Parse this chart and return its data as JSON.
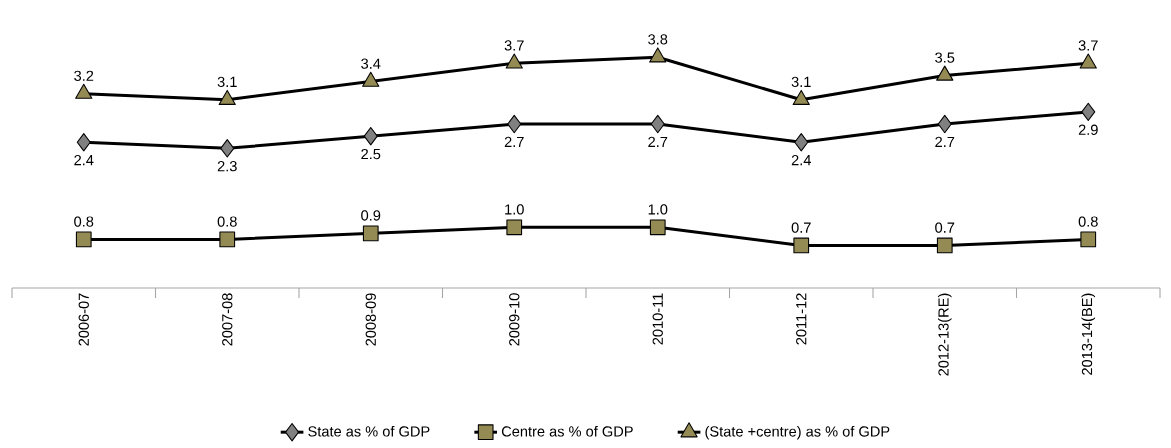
{
  "chart_data": {
    "type": "line",
    "categories": [
      "2006-07",
      "2007-08",
      "2008-09",
      "2009-10",
      "2010-11",
      "2011-12",
      "2012-13(RE)",
      "2013-14(BE)"
    ],
    "series": [
      {
        "name": "State as % of GDP",
        "color": "#000000",
        "colors": [
          "#808080",
          "#808080",
          "#808080",
          "#808080",
          "#808080",
          "#808080",
          "#808080",
          "#808080"
        ],
        "marker": "diamond",
        "values": [
          2.4,
          2.3,
          2.5,
          2.7,
          2.7,
          2.4,
          2.7,
          2.9
        ],
        "value_labels": [
          "2.4",
          "2.3",
          "2.5",
          "2.7",
          "2.7",
          "2.4",
          "2.7",
          "2.9"
        ]
      },
      {
        "name": "Centre as % of GDP",
        "color": "#000000",
        "colors": [
          "#948a54",
          "#948a54",
          "#948a54",
          "#948a54",
          "#948a54",
          "#948a54",
          "#948a54",
          "#948a54"
        ],
        "marker": "square",
        "values": [
          0.8,
          0.8,
          0.9,
          1.0,
          1.0,
          0.7,
          0.7,
          0.8
        ],
        "value_labels": [
          "0.8",
          "0.8",
          "0.9",
          "1.0",
          "1.0",
          "0.7",
          "0.7",
          "0.8"
        ]
      },
      {
        "name": "(State +centre) as % of GDP",
        "color": "#000000",
        "colors": [
          "#948a54",
          "#948a54",
          "#948a54",
          "#948a54",
          "#948a54",
          "#948a54",
          "#948a54",
          "#948a54"
        ],
        "marker": "triangle",
        "values": [
          3.2,
          3.1,
          3.4,
          3.7,
          3.8,
          3.1,
          3.5,
          3.7
        ],
        "value_labels": [
          "3.2",
          "3.1",
          "3.4",
          "3.7",
          "3.8",
          "3.1",
          "3.5",
          "3.7"
        ]
      }
    ],
    "legend": "bottom",
    "grid": false
  }
}
